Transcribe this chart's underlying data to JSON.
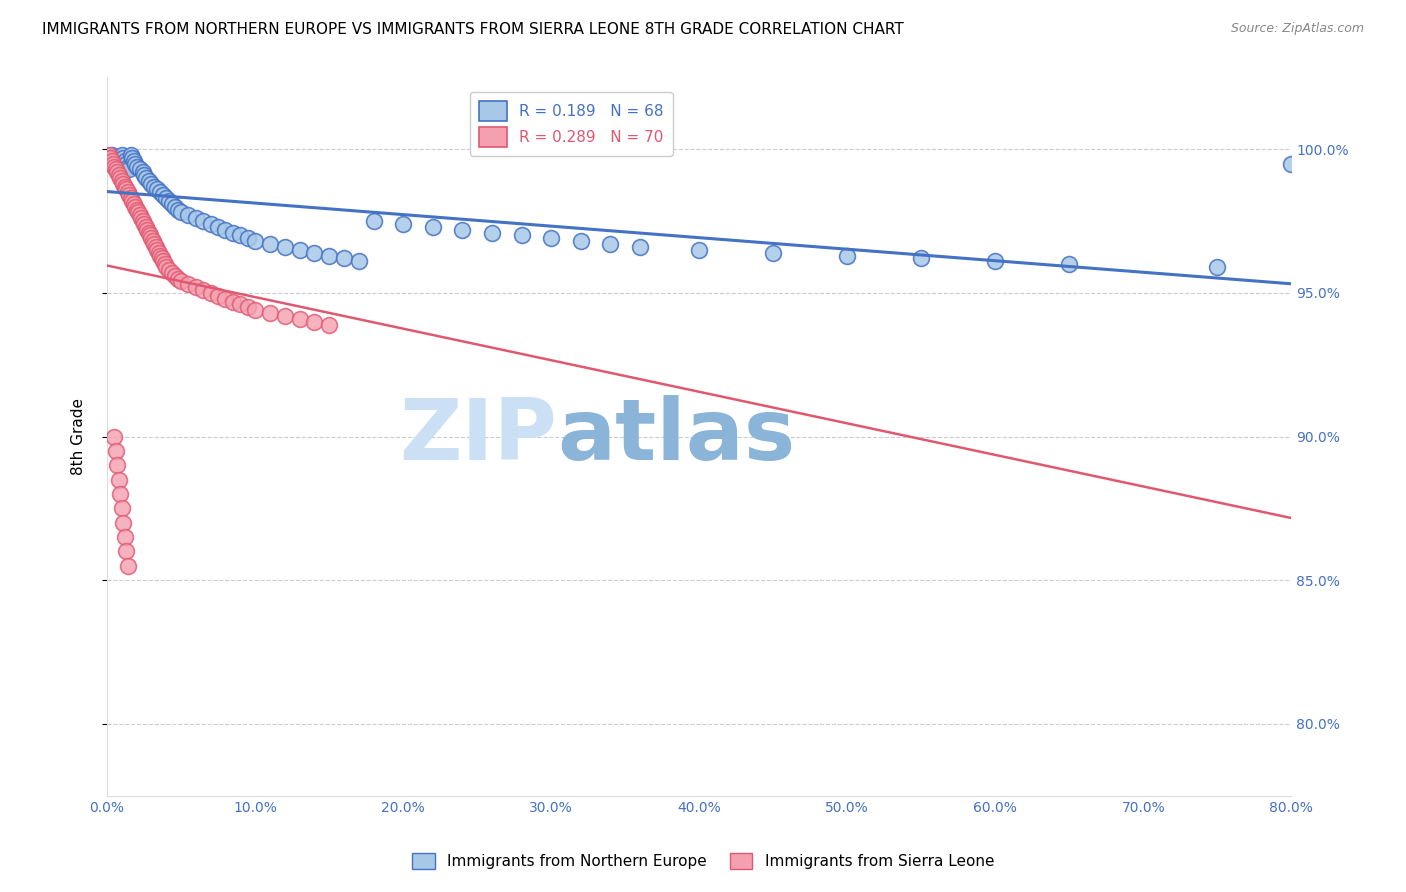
{
  "title": "IMMIGRANTS FROM NORTHERN EUROPE VS IMMIGRANTS FROM SIERRA LEONE 8TH GRADE CORRELATION CHART",
  "source_text": "Source: ZipAtlas.com",
  "ylabel": "8th Grade",
  "x_tick_vals": [
    0.0,
    0.1,
    0.2,
    0.3,
    0.4,
    0.5,
    0.6,
    0.7,
    0.8
  ],
  "x_tick_labels": [
    "0.0%",
    "10.0%",
    "20.0%",
    "30.0%",
    "40.0%",
    "50.0%",
    "60.0%",
    "70.0%",
    "80.0%"
  ],
  "y_tick_vals": [
    1.0,
    0.95,
    0.9,
    0.85,
    0.8
  ],
  "y_tick_labels": [
    "100.0%",
    "95.0%",
    "90.0%",
    "85.0%",
    "80.0%"
  ],
  "xlim": [
    0.0,
    0.8
  ],
  "ylim": [
    0.775,
    1.025
  ],
  "legend_label_blue": "Immigrants from Northern Europe",
  "legend_label_pink": "Immigrants from Sierra Leone",
  "R_blue": 0.189,
  "N_blue": 68,
  "R_pink": 0.289,
  "N_pink": 70,
  "color_blue_fill": "#a8c8e8",
  "color_pink_fill": "#f4a0b0",
  "color_blue_edge": "#4472c4",
  "color_pink_edge": "#e05870",
  "color_axis_text": "#4472c4",
  "color_grid": "#cccccc",
  "watermark_zip": "ZIP",
  "watermark_atlas": "atlas",
  "watermark_color_zip": "#cce0f5",
  "watermark_color_atlas": "#8ab4d8",
  "blue_x": [
    0.003,
    0.005,
    0.006,
    0.007,
    0.008,
    0.009,
    0.01,
    0.011,
    0.012,
    0.013,
    0.014,
    0.015,
    0.016,
    0.017,
    0.018,
    0.019,
    0.02,
    0.022,
    0.024,
    0.025,
    0.026,
    0.028,
    0.03,
    0.032,
    0.034,
    0.036,
    0.038,
    0.04,
    0.042,
    0.044,
    0.046,
    0.048,
    0.05,
    0.055,
    0.06,
    0.065,
    0.07,
    0.075,
    0.08,
    0.085,
    0.09,
    0.095,
    0.1,
    0.11,
    0.12,
    0.13,
    0.14,
    0.15,
    0.16,
    0.17,
    0.18,
    0.2,
    0.22,
    0.24,
    0.26,
    0.28,
    0.3,
    0.32,
    0.34,
    0.36,
    0.4,
    0.45,
    0.5,
    0.55,
    0.6,
    0.65,
    0.75,
    0.8
  ],
  "blue_y": [
    0.998,
    0.997,
    0.996,
    0.995,
    0.994,
    0.993,
    0.998,
    0.997,
    0.996,
    0.995,
    0.994,
    0.993,
    0.998,
    0.997,
    0.996,
    0.995,
    0.994,
    0.993,
    0.992,
    0.991,
    0.99,
    0.989,
    0.988,
    0.987,
    0.986,
    0.985,
    0.984,
    0.983,
    0.982,
    0.981,
    0.98,
    0.979,
    0.978,
    0.977,
    0.976,
    0.975,
    0.974,
    0.973,
    0.972,
    0.971,
    0.97,
    0.969,
    0.968,
    0.967,
    0.966,
    0.965,
    0.964,
    0.963,
    0.962,
    0.961,
    0.975,
    0.974,
    0.973,
    0.972,
    0.971,
    0.97,
    0.969,
    0.968,
    0.967,
    0.966,
    0.965,
    0.964,
    0.963,
    0.962,
    0.961,
    0.96,
    0.959,
    0.995
  ],
  "pink_x": [
    0.001,
    0.002,
    0.003,
    0.004,
    0.005,
    0.006,
    0.007,
    0.008,
    0.009,
    0.01,
    0.011,
    0.012,
    0.013,
    0.014,
    0.015,
    0.016,
    0.017,
    0.018,
    0.019,
    0.02,
    0.021,
    0.022,
    0.023,
    0.024,
    0.025,
    0.026,
    0.027,
    0.028,
    0.029,
    0.03,
    0.031,
    0.032,
    0.033,
    0.034,
    0.035,
    0.036,
    0.037,
    0.038,
    0.039,
    0.04,
    0.042,
    0.044,
    0.046,
    0.048,
    0.05,
    0.055,
    0.06,
    0.065,
    0.07,
    0.075,
    0.08,
    0.085,
    0.09,
    0.095,
    0.1,
    0.11,
    0.12,
    0.13,
    0.14,
    0.15,
    0.005,
    0.006,
    0.007,
    0.008,
    0.009,
    0.01,
    0.011,
    0.012,
    0.013,
    0.014
  ],
  "pink_y": [
    0.998,
    0.997,
    0.996,
    0.995,
    0.994,
    0.993,
    0.992,
    0.991,
    0.99,
    0.989,
    0.988,
    0.987,
    0.986,
    0.985,
    0.984,
    0.983,
    0.982,
    0.981,
    0.98,
    0.979,
    0.978,
    0.977,
    0.976,
    0.975,
    0.974,
    0.973,
    0.972,
    0.971,
    0.97,
    0.969,
    0.968,
    0.967,
    0.966,
    0.965,
    0.964,
    0.963,
    0.962,
    0.961,
    0.96,
    0.959,
    0.958,
    0.957,
    0.956,
    0.955,
    0.954,
    0.953,
    0.952,
    0.951,
    0.95,
    0.949,
    0.948,
    0.947,
    0.946,
    0.945,
    0.944,
    0.943,
    0.942,
    0.941,
    0.94,
    0.939,
    0.9,
    0.895,
    0.89,
    0.885,
    0.88,
    0.875,
    0.87,
    0.865,
    0.86,
    0.855
  ]
}
